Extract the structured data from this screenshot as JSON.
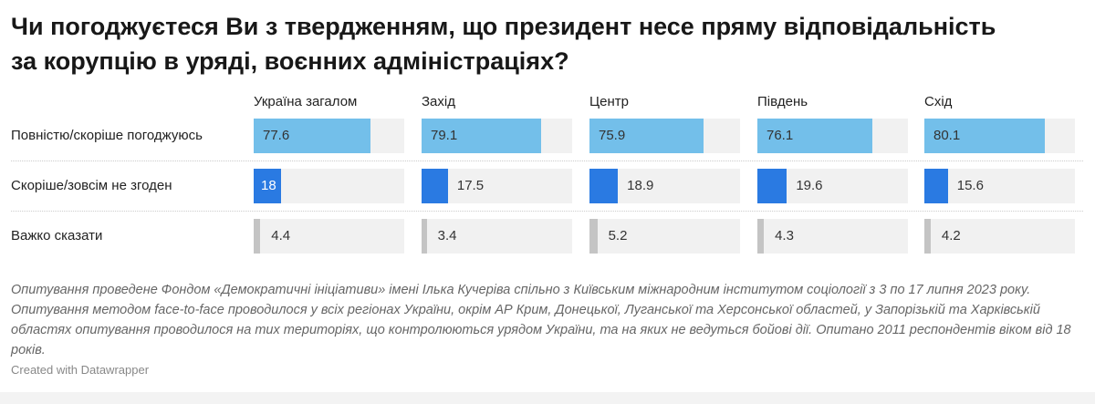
{
  "chart_data": {
    "type": "bar",
    "title": "Чи погоджуєтеся Ви з твердженням, що президент несе пряму відповідальність за корупцію в уряді, воєнних адміністраціях?",
    "categories": [
      "Україна загалом",
      "Захід",
      "Центр",
      "Південь",
      "Схід"
    ],
    "series": [
      {
        "name": "Повністю/скоріше погоджуюсь",
        "color": "#73bfea",
        "values": [
          77.6,
          79.1,
          75.9,
          76.1,
          80.1
        ]
      },
      {
        "name": "Скоріше/зовсім не згоден",
        "color": "#2a7ae2",
        "values": [
          18,
          17.5,
          18.9,
          19.6,
          15.6
        ]
      },
      {
        "name": "Важко сказати",
        "color": "#c4c4c4",
        "values": [
          4.4,
          3.4,
          5.2,
          4.3,
          4.2
        ]
      }
    ],
    "ylim": [
      0,
      100
    ]
  },
  "note": "Опитування проведене Фондом «Демократичні ініціативи» імені Ілька Кучеріва спільно з Київським міжнародним інститутом соціології з 3 по 17 липня 2023 року. Опитування методом face-to-face проводилося у всіх регіонах України, окрім АР Крим, Донецької, Луганської та Херсонської областей, у Запорізькій та Харківській областях опитування проводилося на тих територіях, що контролюються урядом України, та на яких не ведуться бойові дії. Опитано 2011 респондентів віком від 18 років.",
  "credit": "Created with Datawrapper"
}
